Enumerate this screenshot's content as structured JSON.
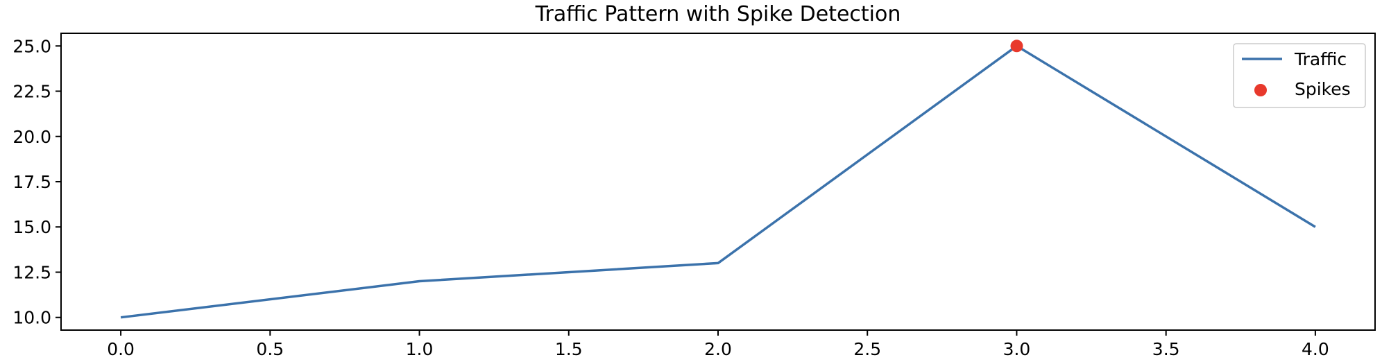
{
  "chart_data": {
    "type": "line",
    "title": "Traffic Pattern with Spike Detection",
    "xlabel": "",
    "ylabel": "",
    "xlim": [
      -0.2,
      4.2
    ],
    "ylim": [
      9.3,
      25.7
    ],
    "x_ticks": [
      "0.0",
      "0.5",
      "1.0",
      "1.5",
      "2.0",
      "2.5",
      "3.0",
      "3.5",
      "4.0"
    ],
    "x_tick_values": [
      0,
      0.5,
      1,
      1.5,
      2,
      2.5,
      3,
      3.5,
      4
    ],
    "y_ticks": [
      "10.0",
      "12.5",
      "15.0",
      "17.5",
      "20.0",
      "22.5",
      "25.0"
    ],
    "y_tick_values": [
      10,
      12.5,
      15,
      17.5,
      20,
      22.5,
      25
    ],
    "grid": false,
    "legend_position": "top-right",
    "series": [
      {
        "name": "Traffic",
        "kind": "line",
        "color": "#3b72ab",
        "x": [
          0,
          1,
          2,
          3,
          4
        ],
        "y": [
          10,
          12,
          13,
          25,
          15
        ]
      },
      {
        "name": "Spikes",
        "kind": "scatter",
        "color": "#e8392c",
        "x": [
          3
        ],
        "y": [
          25
        ]
      }
    ]
  }
}
